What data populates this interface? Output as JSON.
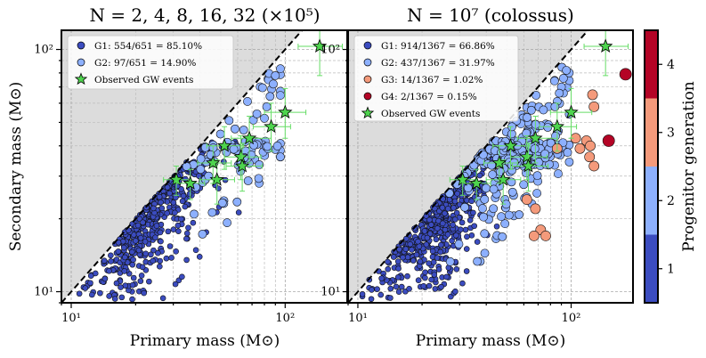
{
  "colors": {
    "G1": "#3b4cc0",
    "G2": "#8db0fe",
    "G3": "#f49a7b",
    "G4": "#b40426",
    "gw_star": "#4ed44e",
    "gw_errorbar": "#66dd66",
    "forbidden_region": "#dcdcdc"
  },
  "chart_data": [
    {
      "type": "scatter",
      "title": "N = 2, 4, 8, 16, 32 (×10⁵)",
      "xlabel": "Primary mass (M⊙)",
      "ylabel": "Secondary mass (M⊙)",
      "xscale": "log",
      "yscale": "log",
      "xlim": [
        9,
        195
      ],
      "ylim": [
        9,
        120
      ],
      "x_tick_labels": [
        "10¹",
        "10²"
      ],
      "y_tick_labels": [
        "10¹",
        "10²"
      ],
      "diagonal_line": "m2 = m1",
      "legend": [
        {
          "generation": "G1",
          "label": "G1: 554/651 = 85.10%"
        },
        {
          "generation": "G2",
          "label": "G2: 97/651 = 14.90%"
        },
        {
          "generation": "GW",
          "label": "Observed GW events"
        }
      ],
      "series": [
        {
          "name": "G1",
          "count": 554,
          "total": 651,
          "fraction_percent": 85.1
        },
        {
          "name": "G2",
          "count": 97,
          "total": 651,
          "fraction_percent": 14.9
        }
      ]
    },
    {
      "type": "scatter",
      "title": "N = 10⁷ (colossus)",
      "xlabel": "Primary mass (M⊙)",
      "ylabel": "",
      "xscale": "log",
      "yscale": "log",
      "xlim": [
        9,
        195
      ],
      "ylim": [
        9,
        120
      ],
      "x_tick_labels": [
        "10¹",
        "10²"
      ],
      "y_tick_labels": [
        "10¹",
        "10²"
      ],
      "diagonal_line": "m2 = m1",
      "legend": [
        {
          "generation": "G1",
          "label": "G1: 914/1367 = 66.86%"
        },
        {
          "generation": "G2",
          "label": "G2: 437/1367 = 31.97%"
        },
        {
          "generation": "G3",
          "label": "G3: 14/1367 = 1.02%"
        },
        {
          "generation": "G4",
          "label": "G4: 2/1367 = 0.15%"
        },
        {
          "generation": "GW",
          "label": "Observed GW events"
        }
      ],
      "series": [
        {
          "name": "G1",
          "count": 914,
          "total": 1367,
          "fraction_percent": 66.86
        },
        {
          "name": "G2",
          "count": 437,
          "total": 1367,
          "fraction_percent": 31.97
        },
        {
          "name": "G3",
          "count": 14,
          "total": 1367,
          "fraction_percent": 1.02
        },
        {
          "name": "G4",
          "count": 2,
          "total": 1367,
          "fraction_percent": 0.15
        }
      ]
    }
  ],
  "gw_events": [
    {
      "m1": 31,
      "m2": 29,
      "m1_err": [
        4,
        5
      ],
      "m2_err": [
        4,
        4
      ]
    },
    {
      "m1": 36,
      "m2": 28,
      "m1_err": [
        5,
        6
      ],
      "m2_err": [
        4,
        4
      ]
    },
    {
      "m1": 48,
      "m2": 29,
      "m1_err": [
        8,
        10
      ],
      "m2_err": [
        6,
        6
      ]
    },
    {
      "m1": 46,
      "m2": 34,
      "m1_err": [
        7,
        10
      ],
      "m2_err": [
        6,
        6
      ]
    },
    {
      "m1": 52,
      "m2": 40,
      "m1_err": [
        9,
        12
      ],
      "m2_err": [
        8,
        8
      ]
    },
    {
      "m1": 62,
      "m2": 36,
      "m1_err": [
        10,
        15
      ],
      "m2_err": [
        7,
        8
      ]
    },
    {
      "m1": 68,
      "m2": 43,
      "m1_err": [
        12,
        18
      ],
      "m2_err": [
        9,
        10
      ]
    },
    {
      "m1": 63,
      "m2": 33,
      "m1_err": [
        10,
        15
      ],
      "m2_err": [
        7,
        8
      ]
    },
    {
      "m1": 86,
      "m2": 48,
      "m1_err": [
        15,
        20
      ],
      "m2_err": [
        10,
        12
      ]
    },
    {
      "m1": 100,
      "m2": 55,
      "m1_err": [
        20,
        25
      ],
      "m2_err": [
        12,
        14
      ]
    },
    {
      "m1": 145,
      "m2": 103,
      "m1_err": [
        30,
        40
      ],
      "m2_err": [
        25,
        30
      ]
    }
  ],
  "colorbar": {
    "label": "Progenitor generation",
    "tick_labels": [
      "1",
      "2",
      "3",
      "4"
    ],
    "levels": [
      1,
      2,
      3,
      4
    ]
  }
}
